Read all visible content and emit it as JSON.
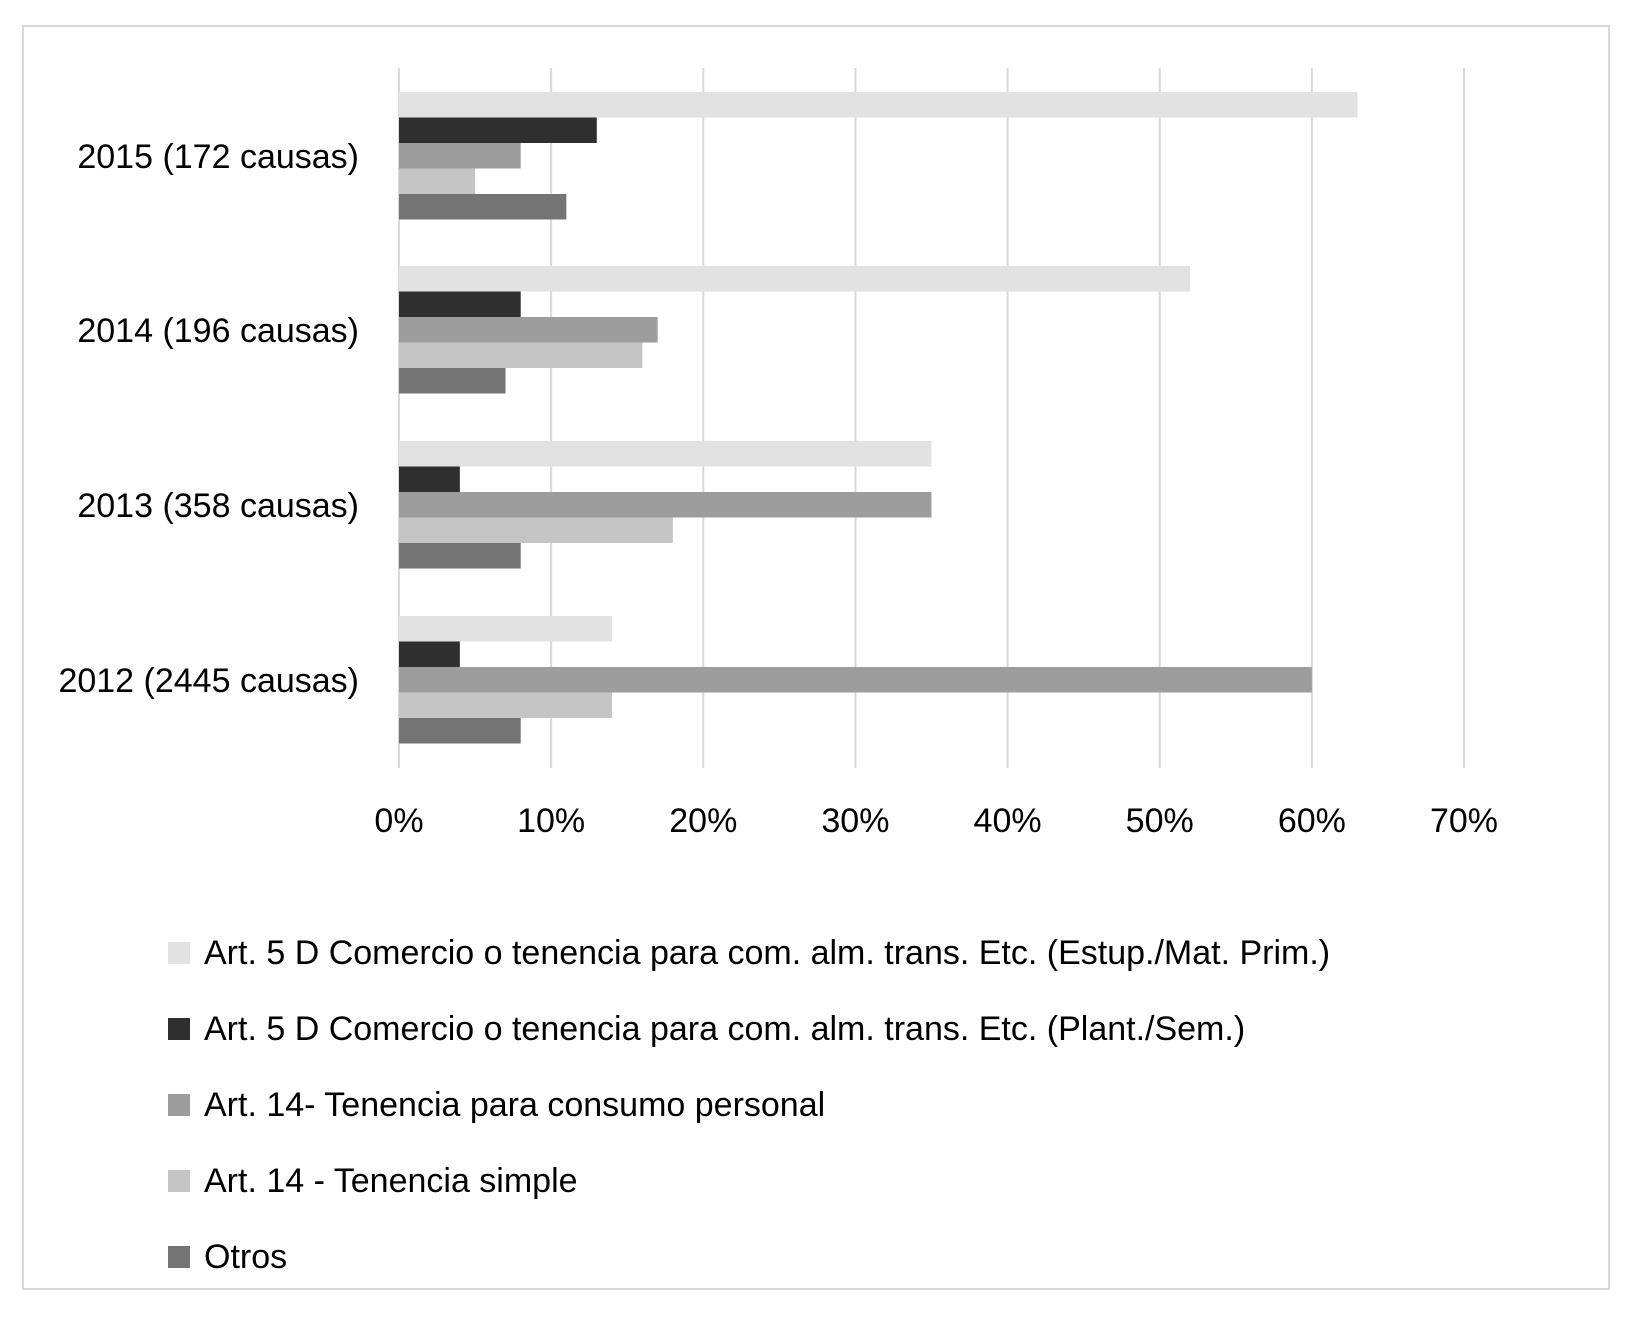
{
  "chart_data": {
    "type": "bar",
    "orientation": "horizontal",
    "categories": [
      "2015 (172 causas)",
      "2014 (196 causas)",
      "2013 (358 causas)",
      "2012 (2445 causas)"
    ],
    "series": [
      {
        "name": "Art. 5 D Comercio o tenencia para com. alm. trans. Etc. (Estup./Mat. Prim.)",
        "color": "#e2e2e2",
        "values": [
          63,
          52,
          35,
          14
        ]
      },
      {
        "name": "Art. 5 D Comercio o tenencia para com. alm. trans. Etc. (Plant./Sem.)",
        "color": "#2f2f2f",
        "values": [
          13,
          8,
          4,
          4
        ]
      },
      {
        "name": "Art. 14- Tenencia para consumo personal",
        "color": "#9d9d9d",
        "values": [
          8,
          17,
          35,
          60
        ]
      },
      {
        "name": "Art. 14 - Tenencia simple",
        "color": "#c5c5c5",
        "values": [
          5,
          16,
          18,
          14
        ]
      },
      {
        "name": "Otros",
        "color": "#747474",
        "values": [
          11,
          7,
          8,
          8
        ]
      }
    ],
    "xticks": [
      "0%",
      "10%",
      "20%",
      "30%",
      "40%",
      "50%",
      "60%",
      "70%"
    ],
    "xlim": [
      0,
      70
    ],
    "unit": "%",
    "grid": true,
    "gridline_color": "#d9d9d9",
    "legend_position": "bottom",
    "title": "",
    "xlabel": "",
    "ylabel": ""
  }
}
